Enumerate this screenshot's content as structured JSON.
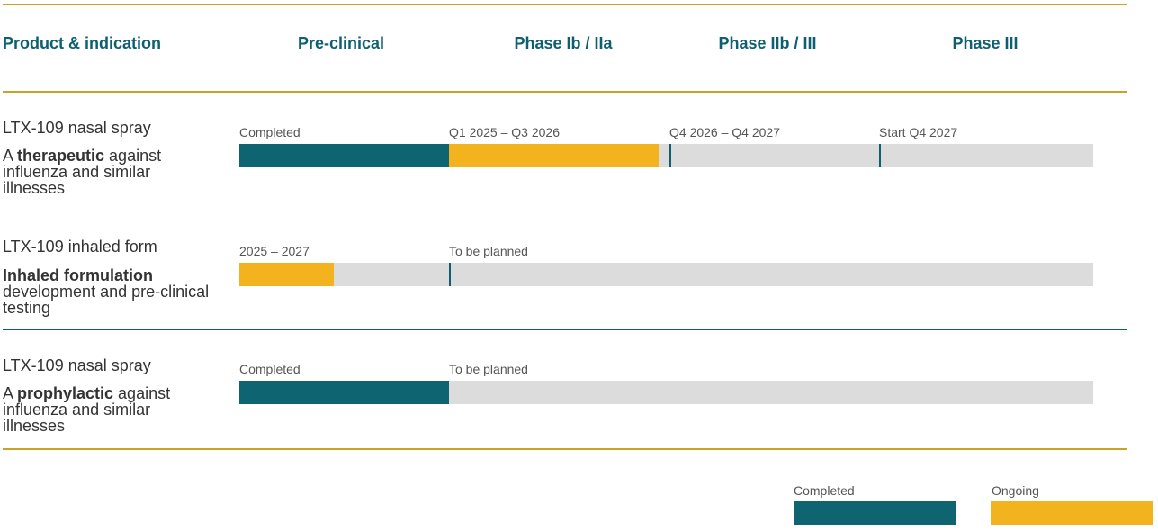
{
  "colors": {
    "completed": "#0e6471",
    "ongoing": "#f2b31e",
    "remaining": "#dcdcdc",
    "header_text": "#0e5f70",
    "rule_gold": "#c9a227",
    "rule_dark": "#333333",
    "rule_teal": "#0e5f70"
  },
  "header": {
    "product": "Product & indication",
    "phases": [
      "Pre-clinical",
      "Phase Ib / IIa",
      "Phase IIb / III",
      "Phase III"
    ]
  },
  "chart_data": {
    "type": "bar",
    "orientation": "horizontal-timeline",
    "stages": [
      "Pre-clinical",
      "Phase Ib / IIa",
      "Phase IIb / III",
      "Phase III"
    ],
    "rows": [
      {
        "name": "LTX-109 nasal spray",
        "desc_pre": "A ",
        "desc_bold": "therapeutic",
        "desc_post": " against influenza and similar illnesses",
        "completed_to": 1.0,
        "ongoing_to": 2.0,
        "labels": [
          {
            "text": "Completed",
            "at": 0.0
          },
          {
            "text": "Q1 2025 – Q3 2026",
            "at": 1.0
          },
          {
            "text": "Q4 2026 – Q4 2027",
            "at": 2.05
          },
          {
            "text": "Start Q4 2027",
            "at": 3.05
          }
        ],
        "markers": [
          2.05,
          3.05
        ]
      },
      {
        "name": "LTX-109 inhaled form",
        "desc_pre": "",
        "desc_bold": "Inhaled formulation",
        "desc_post": " development and pre-clinical testing",
        "completed_to": 0.0,
        "ongoing_to": 0.45,
        "labels": [
          {
            "text": "2025 – 2027",
            "at": 0.0
          },
          {
            "text": "To be planned",
            "at": 1.0
          }
        ],
        "markers": [
          1.0
        ]
      },
      {
        "name": "LTX-109 nasal spray",
        "desc_pre": "A ",
        "desc_bold": "prophylactic",
        "desc_post": " against influenza and similar illnesses",
        "completed_to": 1.0,
        "ongoing_to": 1.0,
        "labels": [
          {
            "text": "Completed",
            "at": 0.0
          },
          {
            "text": "To be planned",
            "at": 1.0
          }
        ],
        "markers": []
      }
    ],
    "legend": [
      {
        "label": "Completed",
        "color": "#0e6471"
      },
      {
        "label": "Ongoing",
        "color": "#f2b31e"
      }
    ]
  }
}
